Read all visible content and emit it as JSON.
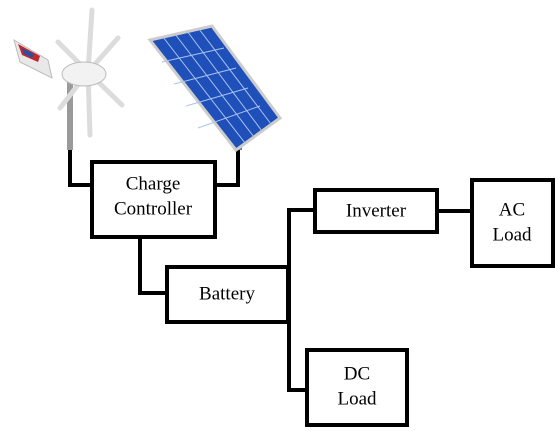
{
  "nodes": [
    {
      "lines": [
        "Charge",
        "Controller"
      ]
    },
    {
      "lines": [
        "Battery"
      ]
    },
    {
      "lines": [
        "Inverter"
      ]
    },
    {
      "lines": [
        "AC",
        "Load"
      ]
    },
    {
      "lines": [
        "DC",
        "Load"
      ]
    }
  ]
}
